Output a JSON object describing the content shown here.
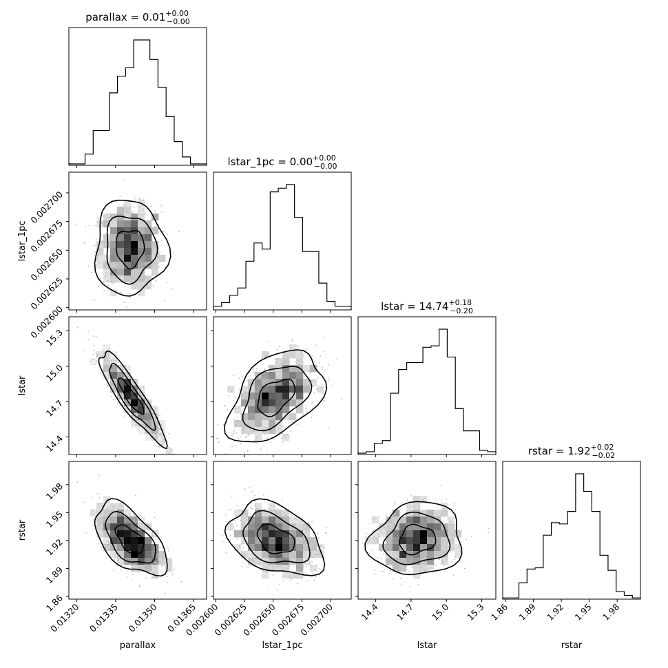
{
  "chart_data": {
    "type": "corner",
    "parameters": [
      {
        "key": "parallax",
        "label": "parallax",
        "title": "parallax = 0.01",
        "title_sup": "+0.00",
        "title_sub": "−0.00",
        "range": [
          0.01317,
          0.0137
        ],
        "ticks": [
          0.0132,
          0.01335,
          0.0135,
          0.01365
        ],
        "tick_labels": [
          "0.01320",
          "0.01335",
          "0.01350",
          "0.01365"
        ],
        "hist": [
          1,
          1,
          8,
          25,
          25,
          52,
          64,
          70,
          90,
          90,
          76,
          56,
          35,
          17,
          6,
          1,
          1
        ]
      },
      {
        "key": "lstar_1pc",
        "label": "lstar_1pc",
        "title": "lstar_1pc = 0.00",
        "title_sup": "+0.00",
        "title_sub": "−0.00",
        "range": [
          0.002598,
          0.002718
        ],
        "ticks": [
          0.0026,
          0.002625,
          0.00265,
          0.002675,
          0.0027
        ],
        "tick_labels": [
          "0.002600",
          "0.002625",
          "0.002650",
          "0.002675",
          "0.002700"
        ],
        "hist": [
          3,
          6,
          12,
          18,
          40,
          55,
          50,
          97,
          100,
          103,
          76,
          48,
          48,
          22,
          7,
          3,
          3
        ]
      },
      {
        "key": "lstar",
        "label": "lstar",
        "title": "lstar = 14.74",
        "title_sup": "+0.18",
        "title_sub": "−0.20",
        "range": [
          14.25,
          15.42
        ],
        "ticks": [
          14.4,
          14.7,
          15.0,
          15.3
        ],
        "tick_labels": [
          "14.4",
          "14.7",
          "15.0",
          "15.3"
        ],
        "hist": [
          1,
          2,
          8,
          10,
          44,
          61,
          66,
          66,
          77,
          78,
          90,
          70,
          33,
          17,
          17,
          3,
          2
        ]
      },
      {
        "key": "rstar",
        "label": "rstar",
        "title": "rstar = 1.92",
        "title_sup": "+0.02",
        "title_sub": "−0.02",
        "range": [
          1.857,
          2.005
        ],
        "ticks": [
          1.86,
          1.89,
          1.92,
          1.95,
          1.98
        ],
        "tick_labels": [
          "1.86",
          "1.89",
          "1.92",
          "1.95",
          "1.98"
        ],
        "hist": [
          1,
          1,
          13,
          24,
          25,
          51,
          61,
          60,
          70,
          100,
          86,
          70,
          35,
          23,
          6,
          3,
          1
        ]
      }
    ],
    "scatter_contours": [
      {
        "x": "parallax",
        "y": "lstar_1pc",
        "center": [
          0.013405,
          0.002652
        ],
        "spread": [
          6e-05,
          1.8e-05
        ],
        "corr": 0.0
      },
      {
        "x": "parallax",
        "y": "lstar",
        "center": [
          0.01341,
          14.74
        ],
        "spread": [
          5.5e-05,
          0.17
        ],
        "corr": -0.9
      },
      {
        "x": "parallax",
        "y": "rstar",
        "center": [
          0.013405,
          1.921
        ],
        "spread": [
          6e-05,
          0.017
        ],
        "corr": -0.55
      },
      {
        "x": "lstar_1pc",
        "y": "lstar",
        "center": [
          0.002652,
          14.74
        ],
        "spread": [
          1.8e-05,
          0.17
        ],
        "corr": 0.45
      },
      {
        "x": "lstar_1pc",
        "y": "rstar",
        "center": [
          0.002652,
          1.921
        ],
        "spread": [
          1.8e-05,
          0.017
        ],
        "corr": -0.35
      },
      {
        "x": "lstar",
        "y": "rstar",
        "center": [
          14.75,
          1.921
        ],
        "spread": [
          0.17,
          0.017
        ],
        "corr": 0.1
      }
    ]
  }
}
